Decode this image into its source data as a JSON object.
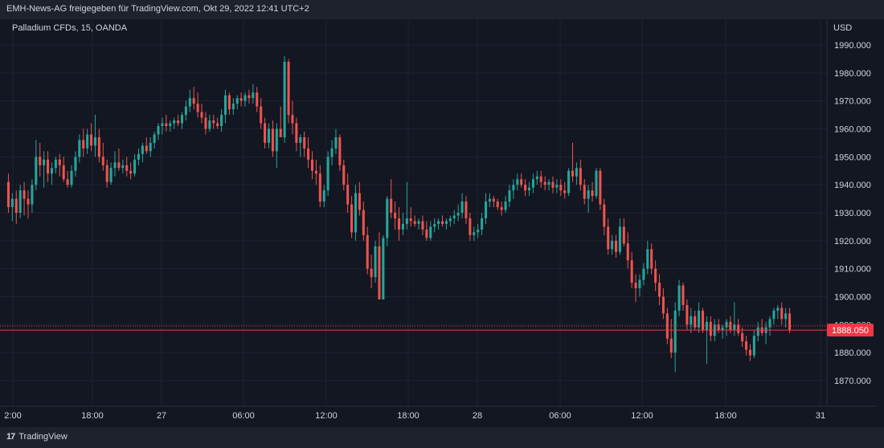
{
  "header": {
    "publisher_text": "EMH-News-AG freigegeben für TradingView.com, Okt 29, 2022 12:41 UTC+2"
  },
  "chart_data": {
    "type": "candlestick",
    "title": "Palladium CFDs, 15, OANDA",
    "currency_label": "USD",
    "ylim": [
      1863,
      1998
    ],
    "y_ticks": [
      1870,
      1880,
      1890,
      1900,
      1910,
      1920,
      1930,
      1940,
      1950,
      1960,
      1970,
      1980,
      1990
    ],
    "y_tick_labels": [
      "1870.000",
      "1880.000",
      "1890.000",
      "1900.000",
      "1910.000",
      "1920.000",
      "1930.000",
      "1940.000",
      "1950.000",
      "1960.000",
      "1970.000",
      "1980.000",
      "1990.000"
    ],
    "x_tick_labels": [
      "2:00",
      "18:00",
      "27",
      "06:00",
      "12:00",
      "18:00",
      "28",
      "06:00",
      "12:00",
      "18:00",
      "31"
    ],
    "last_price": 1888.05,
    "last_price_label": "1888.050",
    "grid": true,
    "colors": {
      "up": "#26a69a",
      "down": "#ef5350",
      "price_line": "#f23645"
    },
    "candles": [
      {
        "o": 1941,
        "h": 1944,
        "l": 1930,
        "c": 1932
      },
      {
        "o": 1932,
        "h": 1937,
        "l": 1927,
        "c": 1935
      },
      {
        "o": 1935,
        "h": 1938,
        "l": 1926,
        "c": 1930
      },
      {
        "o": 1930,
        "h": 1940,
        "l": 1928,
        "c": 1938
      },
      {
        "o": 1938,
        "h": 1941,
        "l": 1929,
        "c": 1935
      },
      {
        "o": 1935,
        "h": 1938,
        "l": 1928,
        "c": 1933
      },
      {
        "o": 1933,
        "h": 1942,
        "l": 1930,
        "c": 1940
      },
      {
        "o": 1940,
        "h": 1956,
        "l": 1938,
        "c": 1950
      },
      {
        "o": 1950,
        "h": 1955,
        "l": 1943,
        "c": 1947
      },
      {
        "o": 1947,
        "h": 1952,
        "l": 1939,
        "c": 1949
      },
      {
        "o": 1949,
        "h": 1952,
        "l": 1941,
        "c": 1944
      },
      {
        "o": 1944,
        "h": 1948,
        "l": 1940,
        "c": 1946
      },
      {
        "o": 1946,
        "h": 1950,
        "l": 1944,
        "c": 1949
      },
      {
        "o": 1949,
        "h": 1951,
        "l": 1943,
        "c": 1947
      },
      {
        "o": 1947,
        "h": 1950,
        "l": 1941,
        "c": 1942
      },
      {
        "o": 1942,
        "h": 1945,
        "l": 1939,
        "c": 1940
      },
      {
        "o": 1940,
        "h": 1947,
        "l": 1939,
        "c": 1945
      },
      {
        "o": 1945,
        "h": 1952,
        "l": 1943,
        "c": 1950
      },
      {
        "o": 1950,
        "h": 1958,
        "l": 1948,
        "c": 1956
      },
      {
        "o": 1956,
        "h": 1960,
        "l": 1950,
        "c": 1953
      },
      {
        "o": 1953,
        "h": 1960,
        "l": 1951,
        "c": 1958
      },
      {
        "o": 1958,
        "h": 1962,
        "l": 1952,
        "c": 1954
      },
      {
        "o": 1954,
        "h": 1965,
        "l": 1950,
        "c": 1957
      },
      {
        "o": 1957,
        "h": 1960,
        "l": 1948,
        "c": 1950
      },
      {
        "o": 1950,
        "h": 1955,
        "l": 1945,
        "c": 1947
      },
      {
        "o": 1947,
        "h": 1949,
        "l": 1939,
        "c": 1941
      },
      {
        "o": 1941,
        "h": 1948,
        "l": 1940,
        "c": 1946
      },
      {
        "o": 1946,
        "h": 1952,
        "l": 1943,
        "c": 1948
      },
      {
        "o": 1948,
        "h": 1953,
        "l": 1945,
        "c": 1946
      },
      {
        "o": 1946,
        "h": 1949,
        "l": 1944,
        "c": 1947
      },
      {
        "o": 1947,
        "h": 1950,
        "l": 1943,
        "c": 1945
      },
      {
        "o": 1945,
        "h": 1948,
        "l": 1942,
        "c": 1944
      },
      {
        "o": 1944,
        "h": 1951,
        "l": 1943,
        "c": 1949
      },
      {
        "o": 1949,
        "h": 1953,
        "l": 1947,
        "c": 1951
      },
      {
        "o": 1951,
        "h": 1955,
        "l": 1948,
        "c": 1954
      },
      {
        "o": 1954,
        "h": 1957,
        "l": 1951,
        "c": 1952
      },
      {
        "o": 1952,
        "h": 1957,
        "l": 1950,
        "c": 1955
      },
      {
        "o": 1955,
        "h": 1959,
        "l": 1953,
        "c": 1958
      },
      {
        "o": 1958,
        "h": 1962,
        "l": 1956,
        "c": 1961
      },
      {
        "o": 1961,
        "h": 1964,
        "l": 1958,
        "c": 1962
      },
      {
        "o": 1962,
        "h": 1965,
        "l": 1959,
        "c": 1961
      },
      {
        "o": 1961,
        "h": 1963,
        "l": 1959,
        "c": 1962
      },
      {
        "o": 1962,
        "h": 1964,
        "l": 1960,
        "c": 1963
      },
      {
        "o": 1963,
        "h": 1965,
        "l": 1961,
        "c": 1962
      },
      {
        "o": 1962,
        "h": 1966,
        "l": 1960,
        "c": 1965
      },
      {
        "o": 1965,
        "h": 1970,
        "l": 1963,
        "c": 1968
      },
      {
        "o": 1968,
        "h": 1974,
        "l": 1966,
        "c": 1971
      },
      {
        "o": 1971,
        "h": 1975,
        "l": 1967,
        "c": 1969
      },
      {
        "o": 1969,
        "h": 1973,
        "l": 1964,
        "c": 1966
      },
      {
        "o": 1966,
        "h": 1969,
        "l": 1962,
        "c": 1964
      },
      {
        "o": 1964,
        "h": 1966,
        "l": 1958,
        "c": 1960
      },
      {
        "o": 1960,
        "h": 1965,
        "l": 1959,
        "c": 1963
      },
      {
        "o": 1963,
        "h": 1965,
        "l": 1960,
        "c": 1962
      },
      {
        "o": 1962,
        "h": 1964,
        "l": 1960,
        "c": 1961
      },
      {
        "o": 1961,
        "h": 1967,
        "l": 1959,
        "c": 1965
      },
      {
        "o": 1965,
        "h": 1974,
        "l": 1962,
        "c": 1972
      },
      {
        "o": 1972,
        "h": 1973,
        "l": 1965,
        "c": 1967
      },
      {
        "o": 1967,
        "h": 1971,
        "l": 1965,
        "c": 1969
      },
      {
        "o": 1969,
        "h": 1972,
        "l": 1967,
        "c": 1971
      },
      {
        "o": 1971,
        "h": 1973,
        "l": 1968,
        "c": 1970
      },
      {
        "o": 1970,
        "h": 1973,
        "l": 1968,
        "c": 1972
      },
      {
        "o": 1972,
        "h": 1974,
        "l": 1969,
        "c": 1971
      },
      {
        "o": 1971,
        "h": 1976,
        "l": 1969,
        "c": 1973
      },
      {
        "o": 1973,
        "h": 1975,
        "l": 1966,
        "c": 1968
      },
      {
        "o": 1968,
        "h": 1971,
        "l": 1960,
        "c": 1962
      },
      {
        "o": 1962,
        "h": 1964,
        "l": 1953,
        "c": 1955
      },
      {
        "o": 1955,
        "h": 1962,
        "l": 1953,
        "c": 1960
      },
      {
        "o": 1960,
        "h": 1963,
        "l": 1950,
        "c": 1952
      },
      {
        "o": 1952,
        "h": 1962,
        "l": 1946,
        "c": 1960
      },
      {
        "o": 1960,
        "h": 1968,
        "l": 1957,
        "c": 1957
      },
      {
        "o": 1957,
        "h": 1986,
        "l": 1955,
        "c": 1984
      },
      {
        "o": 1984,
        "h": 1985,
        "l": 1962,
        "c": 1965
      },
      {
        "o": 1965,
        "h": 1970,
        "l": 1958,
        "c": 1962
      },
      {
        "o": 1962,
        "h": 1964,
        "l": 1952,
        "c": 1955
      },
      {
        "o": 1955,
        "h": 1958,
        "l": 1950,
        "c": 1957
      },
      {
        "o": 1957,
        "h": 1959,
        "l": 1950,
        "c": 1953
      },
      {
        "o": 1953,
        "h": 1957,
        "l": 1946,
        "c": 1949
      },
      {
        "o": 1949,
        "h": 1952,
        "l": 1942,
        "c": 1945
      },
      {
        "o": 1945,
        "h": 1949,
        "l": 1940,
        "c": 1944
      },
      {
        "o": 1944,
        "h": 1947,
        "l": 1932,
        "c": 1934
      },
      {
        "o": 1934,
        "h": 1940,
        "l": 1932,
        "c": 1938
      },
      {
        "o": 1938,
        "h": 1952,
        "l": 1936,
        "c": 1950
      },
      {
        "o": 1950,
        "h": 1956,
        "l": 1947,
        "c": 1953
      },
      {
        "o": 1953,
        "h": 1960,
        "l": 1951,
        "c": 1957
      },
      {
        "o": 1957,
        "h": 1958,
        "l": 1945,
        "c": 1947
      },
      {
        "o": 1947,
        "h": 1949,
        "l": 1938,
        "c": 1940
      },
      {
        "o": 1940,
        "h": 1944,
        "l": 1930,
        "c": 1933
      },
      {
        "o": 1933,
        "h": 1936,
        "l": 1921,
        "c": 1923
      },
      {
        "o": 1923,
        "h": 1940,
        "l": 1920,
        "c": 1937
      },
      {
        "o": 1937,
        "h": 1941,
        "l": 1929,
        "c": 1931
      },
      {
        "o": 1931,
        "h": 1934,
        "l": 1920,
        "c": 1922
      },
      {
        "o": 1922,
        "h": 1925,
        "l": 1908,
        "c": 1910
      },
      {
        "o": 1910,
        "h": 1915,
        "l": 1903,
        "c": 1907
      },
      {
        "o": 1907,
        "h": 1920,
        "l": 1905,
        "c": 1918
      },
      {
        "o": 1918,
        "h": 1923,
        "l": 1899,
        "c": 1899
      },
      {
        "o": 1899,
        "h": 1922,
        "l": 1899,
        "c": 1921
      },
      {
        "o": 1921,
        "h": 1936,
        "l": 1918,
        "c": 1935
      },
      {
        "o": 1935,
        "h": 1942,
        "l": 1928,
        "c": 1930
      },
      {
        "o": 1930,
        "h": 1934,
        "l": 1924,
        "c": 1928
      },
      {
        "o": 1928,
        "h": 1932,
        "l": 1920,
        "c": 1924
      },
      {
        "o": 1924,
        "h": 1930,
        "l": 1922,
        "c": 1926
      },
      {
        "o": 1926,
        "h": 1941,
        "l": 1924,
        "c": 1928
      },
      {
        "o": 1928,
        "h": 1932,
        "l": 1925,
        "c": 1927
      },
      {
        "o": 1927,
        "h": 1929,
        "l": 1925,
        "c": 1926
      },
      {
        "o": 1926,
        "h": 1928,
        "l": 1924,
        "c": 1927
      },
      {
        "o": 1927,
        "h": 1929,
        "l": 1922,
        "c": 1924
      },
      {
        "o": 1924,
        "h": 1927,
        "l": 1920,
        "c": 1921
      },
      {
        "o": 1921,
        "h": 1927,
        "l": 1920,
        "c": 1925
      },
      {
        "o": 1925,
        "h": 1928,
        "l": 1923,
        "c": 1926
      },
      {
        "o": 1926,
        "h": 1928,
        "l": 1924,
        "c": 1927
      },
      {
        "o": 1927,
        "h": 1929,
        "l": 1925,
        "c": 1926
      },
      {
        "o": 1926,
        "h": 1928,
        "l": 1924,
        "c": 1927
      },
      {
        "o": 1927,
        "h": 1929,
        "l": 1925,
        "c": 1928
      },
      {
        "o": 1928,
        "h": 1931,
        "l": 1926,
        "c": 1929
      },
      {
        "o": 1929,
        "h": 1933,
        "l": 1927,
        "c": 1930
      },
      {
        "o": 1930,
        "h": 1937,
        "l": 1928,
        "c": 1934
      },
      {
        "o": 1934,
        "h": 1936,
        "l": 1926,
        "c": 1928
      },
      {
        "o": 1928,
        "h": 1930,
        "l": 1920,
        "c": 1922
      },
      {
        "o": 1922,
        "h": 1925,
        "l": 1920,
        "c": 1923
      },
      {
        "o": 1923,
        "h": 1926,
        "l": 1921,
        "c": 1924
      },
      {
        "o": 1924,
        "h": 1930,
        "l": 1922,
        "c": 1928
      },
      {
        "o": 1928,
        "h": 1937,
        "l": 1926,
        "c": 1934
      },
      {
        "o": 1934,
        "h": 1937,
        "l": 1932,
        "c": 1935
      },
      {
        "o": 1935,
        "h": 1936,
        "l": 1932,
        "c": 1934
      },
      {
        "o": 1934,
        "h": 1935,
        "l": 1931,
        "c": 1932
      },
      {
        "o": 1932,
        "h": 1934,
        "l": 1929,
        "c": 1931
      },
      {
        "o": 1931,
        "h": 1936,
        "l": 1930,
        "c": 1934
      },
      {
        "o": 1934,
        "h": 1940,
        "l": 1932,
        "c": 1938
      },
      {
        "o": 1938,
        "h": 1942,
        "l": 1935,
        "c": 1940
      },
      {
        "o": 1940,
        "h": 1944,
        "l": 1938,
        "c": 1942
      },
      {
        "o": 1942,
        "h": 1944,
        "l": 1939,
        "c": 1940
      },
      {
        "o": 1940,
        "h": 1942,
        "l": 1936,
        "c": 1938
      },
      {
        "o": 1938,
        "h": 1941,
        "l": 1936,
        "c": 1939
      },
      {
        "o": 1939,
        "h": 1944,
        "l": 1937,
        "c": 1942
      },
      {
        "o": 1942,
        "h": 1945,
        "l": 1940,
        "c": 1943
      },
      {
        "o": 1943,
        "h": 1945,
        "l": 1939,
        "c": 1941
      },
      {
        "o": 1941,
        "h": 1943,
        "l": 1938,
        "c": 1940
      },
      {
        "o": 1940,
        "h": 1942,
        "l": 1938,
        "c": 1941
      },
      {
        "o": 1941,
        "h": 1943,
        "l": 1937,
        "c": 1939
      },
      {
        "o": 1939,
        "h": 1942,
        "l": 1937,
        "c": 1940
      },
      {
        "o": 1940,
        "h": 1942,
        "l": 1936,
        "c": 1938
      },
      {
        "o": 1938,
        "h": 1941,
        "l": 1935,
        "c": 1937
      },
      {
        "o": 1937,
        "h": 1946,
        "l": 1936,
        "c": 1945
      },
      {
        "o": 1945,
        "h": 1955,
        "l": 1941,
        "c": 1943
      },
      {
        "o": 1943,
        "h": 1948,
        "l": 1940,
        "c": 1946
      },
      {
        "o": 1946,
        "h": 1949,
        "l": 1938,
        "c": 1940
      },
      {
        "o": 1940,
        "h": 1942,
        "l": 1933,
        "c": 1935
      },
      {
        "o": 1935,
        "h": 1940,
        "l": 1930,
        "c": 1938
      },
      {
        "o": 1938,
        "h": 1941,
        "l": 1934,
        "c": 1936
      },
      {
        "o": 1936,
        "h": 1946,
        "l": 1935,
        "c": 1945
      },
      {
        "o": 1945,
        "h": 1946,
        "l": 1931,
        "c": 1933
      },
      {
        "o": 1933,
        "h": 1935,
        "l": 1922,
        "c": 1925
      },
      {
        "o": 1925,
        "h": 1928,
        "l": 1915,
        "c": 1917
      },
      {
        "o": 1917,
        "h": 1922,
        "l": 1915,
        "c": 1920
      },
      {
        "o": 1920,
        "h": 1922,
        "l": 1914,
        "c": 1916
      },
      {
        "o": 1916,
        "h": 1928,
        "l": 1915,
        "c": 1925
      },
      {
        "o": 1925,
        "h": 1928,
        "l": 1918,
        "c": 1919
      },
      {
        "o": 1919,
        "h": 1923,
        "l": 1910,
        "c": 1913
      },
      {
        "o": 1913,
        "h": 1916,
        "l": 1903,
        "c": 1905
      },
      {
        "o": 1905,
        "h": 1908,
        "l": 1898,
        "c": 1903
      },
      {
        "o": 1903,
        "h": 1908,
        "l": 1900,
        "c": 1906
      },
      {
        "o": 1906,
        "h": 1912,
        "l": 1904,
        "c": 1910
      },
      {
        "o": 1910,
        "h": 1920,
        "l": 1908,
        "c": 1917
      },
      {
        "o": 1917,
        "h": 1919,
        "l": 1908,
        "c": 1910
      },
      {
        "o": 1910,
        "h": 1913,
        "l": 1902,
        "c": 1905
      },
      {
        "o": 1905,
        "h": 1908,
        "l": 1897,
        "c": 1900
      },
      {
        "o": 1900,
        "h": 1903,
        "l": 1892,
        "c": 1894
      },
      {
        "o": 1894,
        "h": 1896,
        "l": 1883,
        "c": 1885
      },
      {
        "o": 1885,
        "h": 1892,
        "l": 1878,
        "c": 1880
      },
      {
        "o": 1880,
        "h": 1898,
        "l": 1873,
        "c": 1895
      },
      {
        "o": 1895,
        "h": 1906,
        "l": 1893,
        "c": 1904
      },
      {
        "o": 1904,
        "h": 1905,
        "l": 1895,
        "c": 1897
      },
      {
        "o": 1897,
        "h": 1899,
        "l": 1888,
        "c": 1890
      },
      {
        "o": 1890,
        "h": 1896,
        "l": 1887,
        "c": 1893
      },
      {
        "o": 1893,
        "h": 1895,
        "l": 1888,
        "c": 1889
      },
      {
        "o": 1889,
        "h": 1898,
        "l": 1887,
        "c": 1895
      },
      {
        "o": 1895,
        "h": 1896,
        "l": 1887,
        "c": 1888
      },
      {
        "o": 1888,
        "h": 1893,
        "l": 1876,
        "c": 1891
      },
      {
        "o": 1891,
        "h": 1893,
        "l": 1884,
        "c": 1886
      },
      {
        "o": 1886,
        "h": 1892,
        "l": 1884,
        "c": 1890
      },
      {
        "o": 1890,
        "h": 1892,
        "l": 1887,
        "c": 1888
      },
      {
        "o": 1888,
        "h": 1890,
        "l": 1885,
        "c": 1889
      },
      {
        "o": 1889,
        "h": 1892,
        "l": 1886,
        "c": 1891
      },
      {
        "o": 1891,
        "h": 1893,
        "l": 1887,
        "c": 1888
      },
      {
        "o": 1888,
        "h": 1898,
        "l": 1886,
        "c": 1890
      },
      {
        "o": 1890,
        "h": 1892,
        "l": 1886,
        "c": 1887
      },
      {
        "o": 1887,
        "h": 1889,
        "l": 1882,
        "c": 1884
      },
      {
        "o": 1884,
        "h": 1886,
        "l": 1879,
        "c": 1881
      },
      {
        "o": 1881,
        "h": 1883,
        "l": 1877,
        "c": 1879
      },
      {
        "o": 1879,
        "h": 1888,
        "l": 1878,
        "c": 1886
      },
      {
        "o": 1886,
        "h": 1891,
        "l": 1884,
        "c": 1889
      },
      {
        "o": 1889,
        "h": 1892,
        "l": 1886,
        "c": 1887
      },
      {
        "o": 1887,
        "h": 1891,
        "l": 1883,
        "c": 1889
      },
      {
        "o": 1889,
        "h": 1893,
        "l": 1886,
        "c": 1892
      },
      {
        "o": 1892,
        "h": 1896,
        "l": 1890,
        "c": 1895
      },
      {
        "o": 1895,
        "h": 1897,
        "l": 1892,
        "c": 1896
      },
      {
        "o": 1896,
        "h": 1898,
        "l": 1890,
        "c": 1892
      },
      {
        "o": 1892,
        "h": 1896,
        "l": 1889,
        "c": 1894
      },
      {
        "o": 1894,
        "h": 1896,
        "l": 1887,
        "c": 1888
      }
    ]
  },
  "footer": {
    "brand_mark": "17",
    "brand_name": "TradingView"
  }
}
